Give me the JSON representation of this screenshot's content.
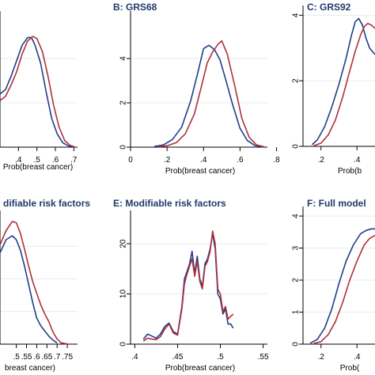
{
  "chart_data": [
    {
      "id": "A",
      "type": "line",
      "title": "",
      "xlabel": "Prob(breast cancer)",
      "ylabel": "",
      "xlim": [
        0.3,
        0.72
      ],
      "ylim": [
        0,
        6
      ],
      "xticks": [
        ".4",
        ".5",
        ".6",
        ".7"
      ],
      "xtick_values": [
        0.4,
        0.5,
        0.6,
        0.7
      ],
      "yticks": [],
      "ytick_values": [
        2,
        4
      ],
      "series": [
        {
          "color": "#1f3f8a",
          "x": [
            0.3,
            0.33,
            0.36,
            0.39,
            0.42,
            0.45,
            0.47,
            0.49,
            0.52,
            0.55,
            0.58,
            0.61,
            0.64,
            0.67,
            0.7
          ],
          "y": [
            2.4,
            2.6,
            3.2,
            3.9,
            4.6,
            4.95,
            4.95,
            4.6,
            3.8,
            2.5,
            1.3,
            0.6,
            0.2,
            0.06,
            0.02
          ]
        },
        {
          "color": "#b0303a",
          "x": [
            0.3,
            0.33,
            0.36,
            0.39,
            0.42,
            0.45,
            0.48,
            0.5,
            0.53,
            0.56,
            0.59,
            0.62,
            0.65,
            0.68,
            0.7
          ],
          "y": [
            2.1,
            2.3,
            2.8,
            3.4,
            4.2,
            4.8,
            5.0,
            4.9,
            4.3,
            3.2,
            1.9,
            0.9,
            0.3,
            0.08,
            0.03
          ]
        }
      ]
    },
    {
      "id": "B",
      "type": "line",
      "title": "B: GRS68",
      "xlabel": "Prob(breast cancer)",
      "ylabel": "",
      "xlim": [
        0,
        0.75
      ],
      "ylim": [
        0,
        6
      ],
      "xticks": [
        "0",
        ".2",
        ".4",
        ".6",
        ".8"
      ],
      "xtick_values": [
        0,
        0.2,
        0.4,
        0.6,
        0.8
      ],
      "yticks": [
        "0",
        "2",
        "4"
      ],
      "ytick_values": [
        0,
        2,
        4
      ],
      "series": [
        {
          "color": "#1f3f8a",
          "x": [
            0.13,
            0.18,
            0.23,
            0.28,
            0.33,
            0.37,
            0.4,
            0.43,
            0.46,
            0.49,
            0.52,
            0.56,
            0.6,
            0.64,
            0.68,
            0.72
          ],
          "y": [
            0.03,
            0.1,
            0.35,
            0.9,
            2.1,
            3.4,
            4.45,
            4.6,
            4.4,
            3.95,
            3.1,
            1.9,
            0.85,
            0.3,
            0.08,
            0.02
          ]
        },
        {
          "color": "#b0303a",
          "x": [
            0.15,
            0.2,
            0.25,
            0.3,
            0.35,
            0.39,
            0.42,
            0.45,
            0.48,
            0.5,
            0.53,
            0.57,
            0.61,
            0.65,
            0.69,
            0.73
          ],
          "y": [
            0.02,
            0.06,
            0.2,
            0.6,
            1.5,
            2.8,
            3.8,
            4.3,
            4.65,
            4.8,
            4.2,
            2.8,
            1.3,
            0.45,
            0.1,
            0.02
          ]
        }
      ]
    },
    {
      "id": "C",
      "type": "line",
      "title": "C: GRS92",
      "xlabel": "Prob(b",
      "ylabel": "",
      "xlim": [
        0.1,
        0.5
      ],
      "ylim": [
        0,
        4.2
      ],
      "xticks": [
        ".2",
        ".4"
      ],
      "xtick_values": [
        0.2,
        0.4
      ],
      "yticks": [
        "0",
        "2",
        "4"
      ],
      "ytick_values": [
        0,
        2,
        4
      ],
      "series": [
        {
          "color": "#1f3f8a",
          "x": [
            0.15,
            0.18,
            0.22,
            0.26,
            0.3,
            0.34,
            0.37,
            0.39,
            0.41,
            0.43,
            0.45,
            0.47,
            0.5
          ],
          "y": [
            0.05,
            0.2,
            0.6,
            1.2,
            1.9,
            2.7,
            3.4,
            3.8,
            3.9,
            3.7,
            3.3,
            3.0,
            2.8
          ]
        },
        {
          "color": "#b0303a",
          "x": [
            0.16,
            0.2,
            0.24,
            0.28,
            0.32,
            0.36,
            0.39,
            0.42,
            0.44,
            0.46,
            0.48,
            0.5
          ],
          "y": [
            0.02,
            0.1,
            0.35,
            0.8,
            1.5,
            2.3,
            2.9,
            3.4,
            3.65,
            3.75,
            3.7,
            3.6
          ]
        }
      ]
    },
    {
      "id": "D",
      "type": "line",
      "title": "difiable risk factors",
      "xlabel": "breast cancer)",
      "ylabel": "",
      "xlim": [
        0.42,
        0.8
      ],
      "ylim": [
        0,
        10
      ],
      "xticks": [
        ".5",
        ".55",
        ".6",
        ".65",
        ".7",
        ".75"
      ],
      "xtick_values": [
        0.5,
        0.55,
        0.6,
        0.65,
        0.7,
        0.75
      ],
      "yticks": [],
      "ytick_values": [
        2.5,
        5,
        7.5
      ],
      "series": [
        {
          "color": "#1f3f8a",
          "x": [
            0.42,
            0.45,
            0.48,
            0.5,
            0.52,
            0.54,
            0.56,
            0.58,
            0.6,
            0.62,
            0.64,
            0.66,
            0.68,
            0.7
          ],
          "y": [
            7.0,
            8.0,
            8.3,
            8.0,
            7.2,
            6.0,
            4.6,
            3.2,
            2.0,
            1.4,
            1.0,
            0.6,
            0.3,
            0.1
          ]
        },
        {
          "color": "#b0303a",
          "x": [
            0.42,
            0.45,
            0.48,
            0.5,
            0.52,
            0.54,
            0.56,
            0.58,
            0.6,
            0.62,
            0.64,
            0.66,
            0.68,
            0.7,
            0.72,
            0.75
          ],
          "y": [
            7.6,
            8.7,
            9.4,
            9.3,
            8.5,
            7.3,
            6.0,
            4.8,
            3.9,
            3.0,
            2.3,
            1.7,
            0.9,
            0.4,
            0.1,
            0.02
          ]
        }
      ]
    },
    {
      "id": "E",
      "type": "line",
      "title": "E: Modifiable risk factors",
      "xlabel": "Prob(breast cancer)",
      "ylabel": "",
      "xlim": [
        0.395,
        0.555
      ],
      "ylim": [
        0,
        26
      ],
      "xticks": [
        ".4",
        ".45",
        ".5",
        ".55"
      ],
      "xtick_values": [
        0.4,
        0.45,
        0.5,
        0.55
      ],
      "yticks": [
        "0",
        "10",
        "20"
      ],
      "ytick_values": [
        0,
        10,
        20
      ],
      "series": [
        {
          "color": "#1f3f8a",
          "x": [
            0.41,
            0.415,
            0.42,
            0.425,
            0.43,
            0.435,
            0.44,
            0.445,
            0.45,
            0.455,
            0.458,
            0.461,
            0.464,
            0.467,
            0.47,
            0.473,
            0.476,
            0.479,
            0.482,
            0.485,
            0.488,
            0.491,
            0.494,
            0.497,
            0.5,
            0.503,
            0.506,
            0.509,
            0.512,
            0.515
          ],
          "y": [
            1.0,
            2.0,
            1.6,
            1.2,
            2.0,
            3.5,
            4.2,
            2.5,
            2.0,
            7.5,
            13.0,
            14.5,
            16.0,
            18.5,
            14.0,
            17.5,
            13.0,
            11.5,
            16.0,
            17.0,
            19.0,
            22.0,
            19.0,
            10.0,
            9.0,
            6.0,
            7.0,
            4.0,
            4.0,
            3.2
          ]
        },
        {
          "color": "#b0303a",
          "x": [
            0.41,
            0.415,
            0.42,
            0.425,
            0.43,
            0.435,
            0.44,
            0.445,
            0.45,
            0.455,
            0.458,
            0.461,
            0.464,
            0.467,
            0.47,
            0.473,
            0.476,
            0.479,
            0.482,
            0.485,
            0.488,
            0.491,
            0.494,
            0.497,
            0.5,
            0.503,
            0.506,
            0.509,
            0.512,
            0.515
          ],
          "y": [
            0.6,
            1.2,
            1.0,
            0.9,
            1.5,
            3.0,
            4.0,
            2.2,
            1.8,
            7.0,
            12.0,
            14.0,
            15.5,
            17.0,
            13.5,
            16.5,
            12.5,
            11.0,
            15.5,
            16.5,
            18.5,
            22.5,
            20.0,
            11.0,
            10.0,
            6.5,
            7.5,
            5.0,
            5.5,
            6.0
          ]
        }
      ]
    },
    {
      "id": "F",
      "type": "line",
      "title": "F: Full model",
      "xlabel": "Prob(",
      "ylabel": "",
      "xlim": [
        0.1,
        0.5
      ],
      "ylim": [
        0,
        4.2
      ],
      "xticks": [
        ".2",
        ".4"
      ],
      "xtick_values": [
        0.2,
        0.4
      ],
      "yticks": [
        "0",
        "1",
        "2",
        "3",
        "4"
      ],
      "ytick_values": [
        0,
        1,
        2,
        3,
        4
      ],
      "series": [
        {
          "color": "#1f3f8a",
          "x": [
            0.14,
            0.18,
            0.22,
            0.26,
            0.3,
            0.34,
            0.38,
            0.42,
            0.45,
            0.48,
            0.5
          ],
          "y": [
            0.03,
            0.15,
            0.5,
            1.1,
            1.9,
            2.6,
            3.1,
            3.45,
            3.55,
            3.6,
            3.6
          ]
        },
        {
          "color": "#b0303a",
          "x": [
            0.16,
            0.2,
            0.24,
            0.28,
            0.32,
            0.36,
            0.4,
            0.44,
            0.47,
            0.5
          ],
          "y": [
            0.02,
            0.08,
            0.3,
            0.7,
            1.3,
            2.0,
            2.6,
            3.1,
            3.3,
            3.4
          ]
        }
      ]
    }
  ]
}
